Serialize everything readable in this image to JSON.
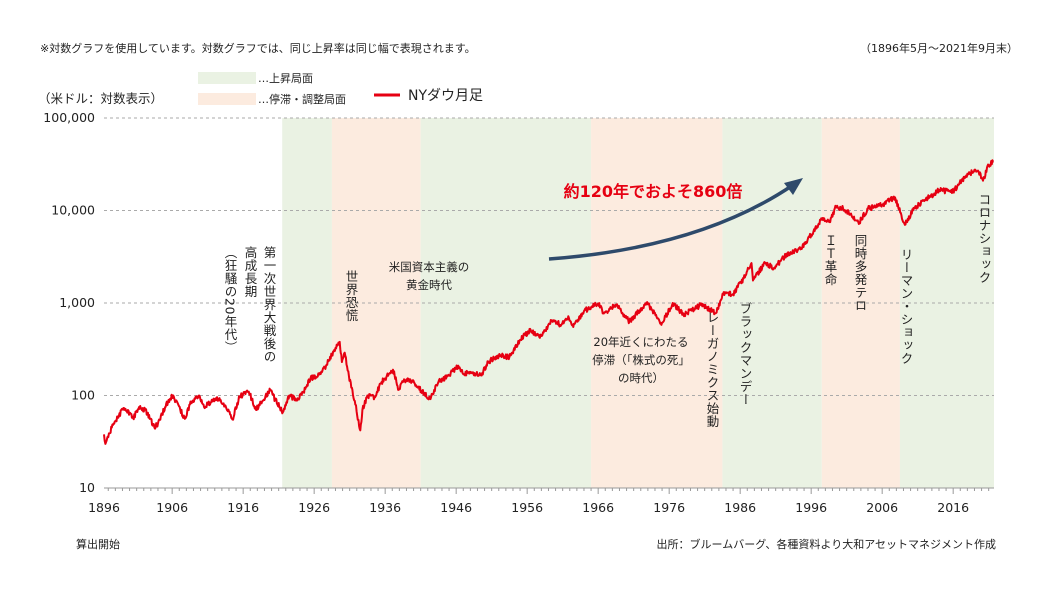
{
  "header": {
    "note": "※対数グラフを使用しています。対数グラフでは、同じ上昇率は同じ幅で表現されます。",
    "period": "（1896年5月～2021年9月末）",
    "unit": "（米ドル：対数表示）"
  },
  "legend": {
    "up": "…上昇局面",
    "stagnation": "…停滞・調整局面",
    "series": "NYダウ月足"
  },
  "footer": {
    "start": "算出開始",
    "source": "出所：ブルームバーグ、各種資料より大和アセットマネジメント作成"
  },
  "colors": {
    "line": "#e60012",
    "up_band": "#eaf2e3",
    "stagnation_band": "#fcebdf",
    "arrow": "#2e4a6b",
    "grid": "#aaaaaa"
  },
  "chart_data": {
    "type": "line",
    "scale": "log",
    "xlim": [
      1896.4,
      2021.75
    ],
    "ylim": [
      10,
      100000
    ],
    "y_ticks": [
      "100,000",
      "10,000",
      "1,000",
      "100",
      "10"
    ],
    "x_ticks": [
      "1896",
      "1906",
      "1916",
      "1926",
      "1936",
      "1946",
      "1956",
      "1966",
      "1976",
      "1986",
      "1996",
      "2006",
      "2016"
    ],
    "grid": "horizontal-dashed",
    "legend_position": "top-left",
    "bands": [
      {
        "type": "up",
        "from": 1921.5,
        "to": 1928.5
      },
      {
        "type": "stagnation",
        "from": 1928.5,
        "to": 1941.0
      },
      {
        "type": "up",
        "from": 1941.0,
        "to": 1965.0
      },
      {
        "type": "stagnation",
        "from": 1965.0,
        "to": 1983.5
      },
      {
        "type": "up",
        "from": 1983.5,
        "to": 1997.5
      },
      {
        "type": "stagnation",
        "from": 1997.5,
        "to": 2008.5
      },
      {
        "type": "up",
        "from": 2008.5,
        "to": 2021.75
      }
    ],
    "series": [
      {
        "name": "NYダウ月足",
        "points": [
          [
            1896.4,
            38
          ],
          [
            1896.6,
            30
          ],
          [
            1897.5,
            45
          ],
          [
            1898.5,
            60
          ],
          [
            1899.0,
            72
          ],
          [
            1899.6,
            68
          ],
          [
            1900.5,
            57
          ],
          [
            1901.5,
            77
          ],
          [
            1902.5,
            65
          ],
          [
            1903.5,
            45
          ],
          [
            1904.0,
            50
          ],
          [
            1905.0,
            75
          ],
          [
            1906.0,
            100
          ],
          [
            1906.5,
            88
          ],
          [
            1907.8,
            56
          ],
          [
            1908.5,
            80
          ],
          [
            1909.8,
            100
          ],
          [
            1910.5,
            75
          ],
          [
            1911.5,
            85
          ],
          [
            1912.5,
            92
          ],
          [
            1913.5,
            78
          ],
          [
            1914.5,
            55
          ],
          [
            1915.5,
            98
          ],
          [
            1916.8,
            110
          ],
          [
            1917.8,
            70
          ],
          [
            1918.5,
            85
          ],
          [
            1919.8,
            115
          ],
          [
            1920.5,
            90
          ],
          [
            1921.6,
            66
          ],
          [
            1922.5,
            100
          ],
          [
            1923.5,
            90
          ],
          [
            1924.5,
            110
          ],
          [
            1925.5,
            155
          ],
          [
            1926.5,
            160
          ],
          [
            1927.5,
            200
          ],
          [
            1928.5,
            280
          ],
          [
            1929.6,
            380
          ],
          [
            1929.9,
            230
          ],
          [
            1930.3,
            290
          ],
          [
            1930.9,
            160
          ],
          [
            1931.8,
            80
          ],
          [
            1932.5,
            42
          ],
          [
            1932.8,
            70
          ],
          [
            1933.5,
            100
          ],
          [
            1934.5,
            95
          ],
          [
            1935.5,
            140
          ],
          [
            1936.5,
            170
          ],
          [
            1937.1,
            190
          ],
          [
            1937.9,
            115
          ],
          [
            1938.5,
            140
          ],
          [
            1939.5,
            150
          ],
          [
            1940.5,
            125
          ],
          [
            1942.3,
            93
          ],
          [
            1943.5,
            140
          ],
          [
            1945.0,
            165
          ],
          [
            1946.3,
            210
          ],
          [
            1947.0,
            170
          ],
          [
            1948.0,
            180
          ],
          [
            1949.5,
            165
          ],
          [
            1950.5,
            230
          ],
          [
            1952.0,
            270
          ],
          [
            1953.5,
            260
          ],
          [
            1955.0,
            400
          ],
          [
            1956.5,
            510
          ],
          [
            1957.8,
            420
          ],
          [
            1959.5,
            650
          ],
          [
            1960.8,
            580
          ],
          [
            1961.8,
            720
          ],
          [
            1962.5,
            550
          ],
          [
            1964.0,
            820
          ],
          [
            1966.0,
            990
          ],
          [
            1966.8,
            770
          ],
          [
            1968.5,
            960
          ],
          [
            1970.4,
            630
          ],
          [
            1972.9,
            1020
          ],
          [
            1974.9,
            580
          ],
          [
            1976.5,
            1000
          ],
          [
            1978.0,
            750
          ],
          [
            1980.5,
            950
          ],
          [
            1982.6,
            780
          ],
          [
            1983.6,
            1250
          ],
          [
            1985.0,
            1250
          ],
          [
            1986.5,
            1850
          ],
          [
            1987.6,
            2700
          ],
          [
            1987.8,
            1750
          ],
          [
            1989.5,
            2700
          ],
          [
            1990.8,
            2400
          ],
          [
            1992.5,
            3300
          ],
          [
            1994.5,
            3800
          ],
          [
            1996.0,
            5500
          ],
          [
            1997.5,
            8000
          ],
          [
            1998.6,
            7500
          ],
          [
            1999.5,
            11000
          ],
          [
            2000.5,
            10500
          ],
          [
            2001.7,
            8800
          ],
          [
            2002.8,
            7500
          ],
          [
            2004.0,
            10500
          ],
          [
            2006.0,
            11500
          ],
          [
            2007.8,
            13900
          ],
          [
            2009.2,
            7000
          ],
          [
            2010.5,
            10500
          ],
          [
            2012.0,
            13000
          ],
          [
            2014.0,
            16500
          ],
          [
            2016.0,
            16000
          ],
          [
            2018.0,
            25000
          ],
          [
            2019.5,
            27000
          ],
          [
            2020.2,
            21000
          ],
          [
            2021.0,
            31000
          ],
          [
            2021.7,
            34000
          ]
        ]
      }
    ],
    "headline": "約120年でおよそ860倍",
    "annotations": [
      {
        "text": "第一次世界大戦後の",
        "x": 1919.5,
        "orientation": "vertical"
      },
      {
        "text": "高成長期",
        "x": 1917.5,
        "orientation": "vertical"
      },
      {
        "text": "（狂騒の20年代）",
        "x": 1915.3,
        "orientation": "vertical"
      },
      {
        "text": "世界恐慌",
        "x": 1930.2,
        "orientation": "vertical"
      },
      {
        "text": "米国資本主義の",
        "x": 1949.0,
        "orientation": "horizontal"
      },
      {
        "text": "黄金時代",
        "x": 1949.0,
        "orientation": "horizontal"
      },
      {
        "text": "20年近くにわたる",
        "x": 1974.0,
        "orientation": "horizontal"
      },
      {
        "text": "停滞（「株式の死」",
        "x": 1974.0,
        "orientation": "horizontal"
      },
      {
        "text": "の時代）",
        "x": 1974.0,
        "orientation": "horizontal"
      },
      {
        "text": "レーガノミクス始動",
        "x": 1981.5,
        "orientation": "vertical"
      },
      {
        "text": "ブラックマンデー",
        "x": 1987.5,
        "orientation": "vertical"
      },
      {
        "text": "ＩＴ革命",
        "x": 1997.0,
        "orientation": "vertical"
      },
      {
        "text": "同時多発テロ",
        "x": 2001.2,
        "orientation": "vertical"
      },
      {
        "text": "リーマン・ショック",
        "x": 2008.5,
        "orientation": "vertical"
      },
      {
        "text": "コロナショック",
        "x": 2019.8,
        "orientation": "vertical"
      }
    ]
  }
}
